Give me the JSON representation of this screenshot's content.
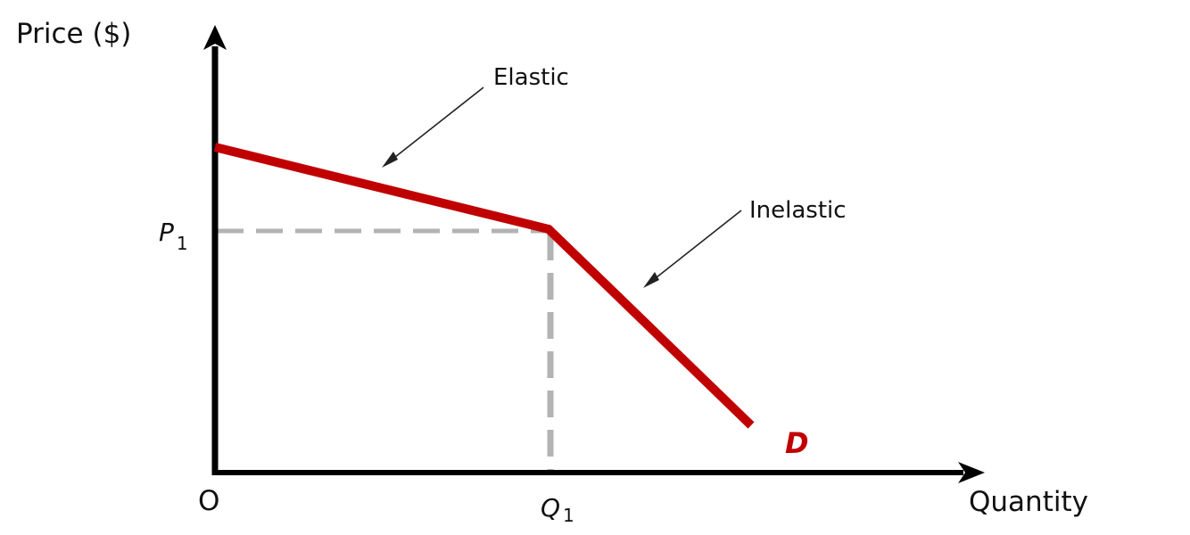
{
  "axes": {
    "y_label": "Price ($)",
    "x_label": "Quantity",
    "origin_label": "O"
  },
  "markers": {
    "price_symbol": "P",
    "price_subscript": "1",
    "quantity_symbol": "Q",
    "quantity_subscript": "1"
  },
  "annotations": {
    "elastic": "Elastic",
    "inelastic": "Inelastic"
  },
  "curve": {
    "label": "D",
    "color": "#c00000"
  },
  "colors": {
    "axis": "#000000",
    "guide": "#b3b3b3",
    "arrow": "#222222"
  }
}
